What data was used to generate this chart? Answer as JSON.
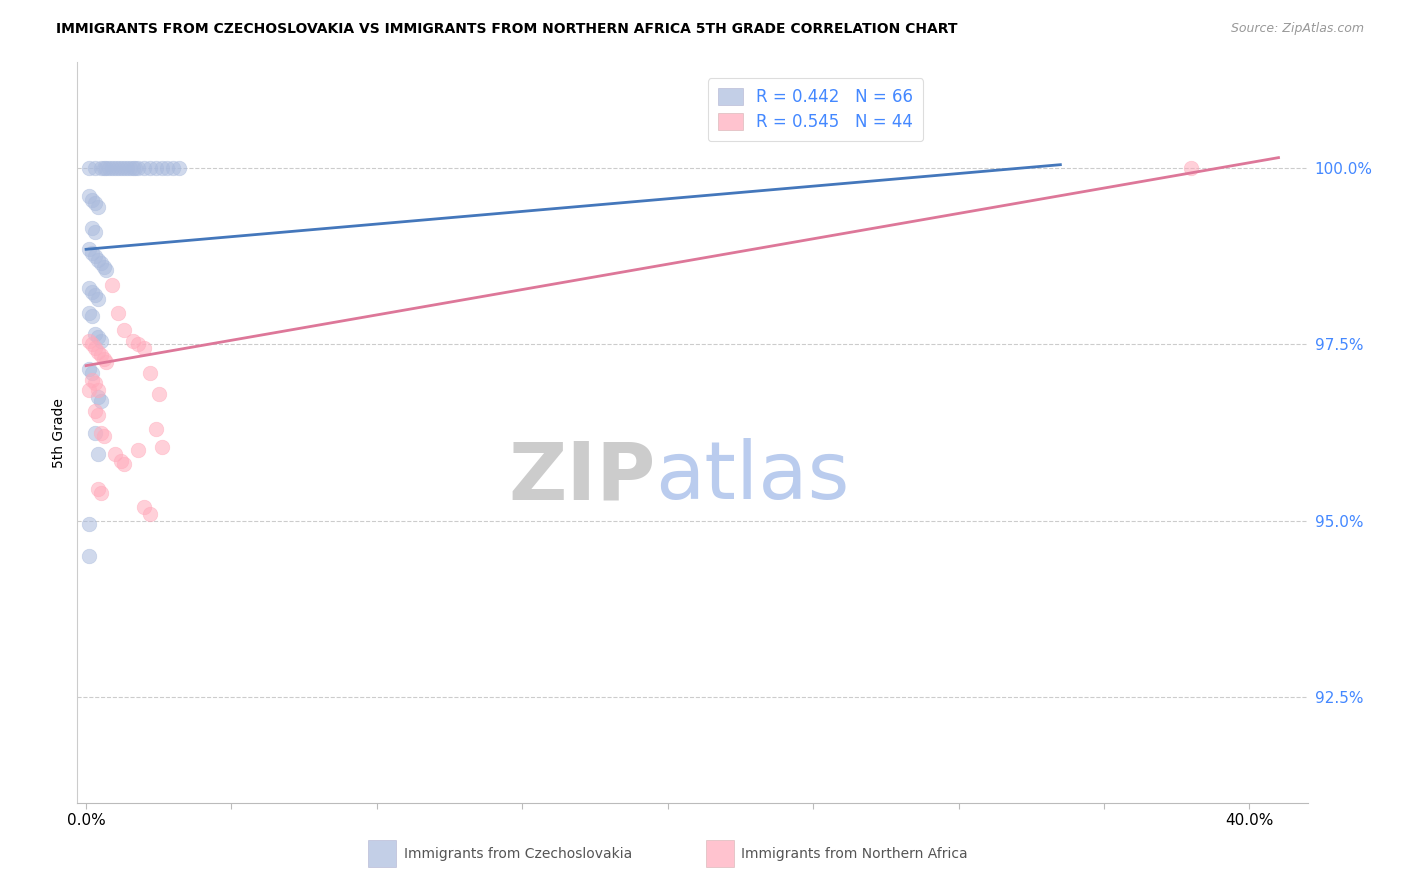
{
  "title": "IMMIGRANTS FROM CZECHOSLOVAKIA VS IMMIGRANTS FROM NORTHERN AFRICA 5TH GRADE CORRELATION CHART",
  "source": "Source: ZipAtlas.com",
  "ylabel": "5th Grade",
  "yticks": [
    92.5,
    95.0,
    97.5,
    100.0
  ],
  "ylim": [
    91.0,
    101.5
  ],
  "xlim": [
    -0.003,
    0.42
  ],
  "blue_color": "#AABBDD",
  "pink_color": "#FFAABB",
  "blue_line_color": "#4477BB",
  "pink_line_color": "#DD7799",
  "legend_text_color": "#4488FF",
  "right_axis_color": "#4488FF",
  "watermark_zip_color": "#CCCCCC",
  "watermark_atlas_color": "#BACCEE",
  "blue_scatter": [
    [
      0.001,
      100.0
    ],
    [
      0.003,
      100.0
    ],
    [
      0.005,
      100.0
    ],
    [
      0.006,
      100.0
    ],
    [
      0.007,
      100.0
    ],
    [
      0.008,
      100.0
    ],
    [
      0.009,
      100.0
    ],
    [
      0.01,
      100.0
    ],
    [
      0.011,
      100.0
    ],
    [
      0.012,
      100.0
    ],
    [
      0.013,
      100.0
    ],
    [
      0.014,
      100.0
    ],
    [
      0.015,
      100.0
    ],
    [
      0.016,
      100.0
    ],
    [
      0.017,
      100.0
    ],
    [
      0.018,
      100.0
    ],
    [
      0.02,
      100.0
    ],
    [
      0.022,
      100.0
    ],
    [
      0.024,
      100.0
    ],
    [
      0.026,
      100.0
    ],
    [
      0.028,
      100.0
    ],
    [
      0.03,
      100.0
    ],
    [
      0.032,
      100.0
    ],
    [
      0.001,
      99.6
    ],
    [
      0.002,
      99.55
    ],
    [
      0.003,
      99.5
    ],
    [
      0.004,
      99.45
    ],
    [
      0.002,
      99.15
    ],
    [
      0.003,
      99.1
    ],
    [
      0.001,
      98.85
    ],
    [
      0.002,
      98.8
    ],
    [
      0.003,
      98.75
    ],
    [
      0.004,
      98.7
    ],
    [
      0.005,
      98.65
    ],
    [
      0.006,
      98.6
    ],
    [
      0.007,
      98.55
    ],
    [
      0.001,
      98.3
    ],
    [
      0.002,
      98.25
    ],
    [
      0.003,
      98.2
    ],
    [
      0.004,
      98.15
    ],
    [
      0.001,
      97.95
    ],
    [
      0.002,
      97.9
    ],
    [
      0.003,
      97.65
    ],
    [
      0.004,
      97.6
    ],
    [
      0.005,
      97.55
    ],
    [
      0.001,
      97.15
    ],
    [
      0.002,
      97.1
    ],
    [
      0.004,
      96.75
    ],
    [
      0.005,
      96.7
    ],
    [
      0.003,
      96.25
    ],
    [
      0.004,
      95.95
    ],
    [
      0.001,
      94.95
    ],
    [
      0.001,
      94.5
    ]
  ],
  "pink_scatter": [
    [
      0.001,
      97.55
    ],
    [
      0.002,
      97.5
    ],
    [
      0.003,
      97.45
    ],
    [
      0.004,
      97.4
    ],
    [
      0.005,
      97.35
    ],
    [
      0.006,
      97.3
    ],
    [
      0.007,
      97.25
    ],
    [
      0.002,
      97.0
    ],
    [
      0.003,
      96.95
    ],
    [
      0.004,
      96.85
    ],
    [
      0.003,
      96.55
    ],
    [
      0.004,
      96.5
    ],
    [
      0.005,
      96.25
    ],
    [
      0.006,
      96.2
    ],
    [
      0.009,
      98.35
    ],
    [
      0.011,
      97.95
    ],
    [
      0.013,
      97.7
    ],
    [
      0.016,
      97.55
    ],
    [
      0.018,
      97.5
    ],
    [
      0.02,
      97.45
    ],
    [
      0.022,
      97.1
    ],
    [
      0.025,
      96.8
    ],
    [
      0.01,
      95.95
    ],
    [
      0.012,
      95.85
    ],
    [
      0.013,
      95.8
    ],
    [
      0.004,
      95.45
    ],
    [
      0.005,
      95.4
    ],
    [
      0.02,
      95.2
    ],
    [
      0.022,
      95.1
    ],
    [
      0.024,
      96.3
    ],
    [
      0.026,
      96.05
    ],
    [
      0.018,
      96.0
    ],
    [
      0.001,
      96.85
    ],
    [
      0.38,
      100.0
    ]
  ],
  "blue_trend_x": [
    0.0,
    0.335
  ],
  "blue_trend_y": [
    98.85,
    100.05
  ],
  "pink_trend_x": [
    0.0,
    0.41
  ],
  "pink_trend_y": [
    97.2,
    100.15
  ]
}
